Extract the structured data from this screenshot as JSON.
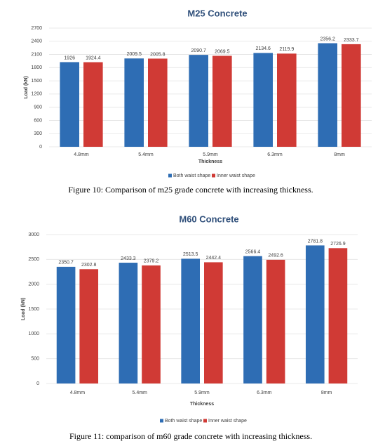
{
  "chart_data": [
    {
      "type": "bar",
      "title": "M25 Concrete",
      "x_label": "Thickness",
      "y_label": "Load (kN)",
      "categories": [
        "4.8mm",
        "5.4mm",
        "5.9mm",
        "6.3mm",
        "8mm"
      ],
      "series": [
        {
          "name": "Both waist shape",
          "color": "#2e6db4",
          "values": [
            1926,
            2009.5,
            2090.7,
            2134.6,
            2356.2
          ]
        },
        {
          "name": "Inner waist shape",
          "color": "#d03a35",
          "values": [
            1924.4,
            2005.8,
            2069.5,
            2119.9,
            2333.7
          ]
        }
      ],
      "ylim": [
        0,
        2700
      ],
      "yticks": [
        0,
        300,
        600,
        900,
        1200,
        1500,
        1800,
        2100,
        2400,
        2700
      ],
      "grid": true,
      "caption": "Figure 10: Comparison of m25 grade concrete with increasing thickness."
    },
    {
      "type": "bar",
      "title": "M60 Concrete",
      "x_label": "Thickness",
      "y_label": "Load (kN)",
      "categories": [
        "4.8mm",
        "5.4mm",
        "5.9mm",
        "6.3mm",
        "8mm"
      ],
      "series": [
        {
          "name": "Both waist shape",
          "color": "#2e6db4",
          "values": [
            2350.7,
            2433.3,
            2513.5,
            2566.4,
            2781.8
          ]
        },
        {
          "name": "Inner waist shape",
          "color": "#d03a35",
          "values": [
            2302.8,
            2379.2,
            2442.4,
            2492.6,
            2726.9
          ]
        }
      ],
      "ylim": [
        0,
        3000
      ],
      "yticks": [
        0,
        500,
        1000,
        1500,
        2000,
        2500,
        3000
      ],
      "grid": true,
      "caption": "Figure 11: comparison of m60 grade concrete with increasing thickness."
    }
  ]
}
